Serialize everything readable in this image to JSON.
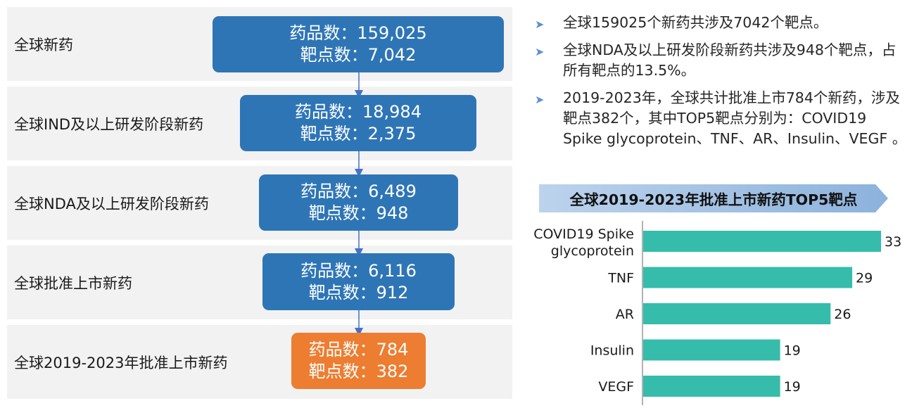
{
  "funnel": {
    "rows": [
      {
        "label": "全球新药",
        "drugs": "药品数：159,025",
        "targets": "靶点数：7,042"
      },
      {
        "label": "全球IND及以上研发阶段新药",
        "drugs": "药品数：18,984",
        "targets": "靶点数：2,375"
      },
      {
        "label": "全球NDA及以上研发阶段新药",
        "drugs": "药品数：6,489",
        "targets": "靶点数：948"
      },
      {
        "label": "全球批准上市新药",
        "drugs": "药品数：6,116",
        "targets": "靶点数：912"
      },
      {
        "label": "全球2019-2023年批准上市新药",
        "drugs": "药品数：784",
        "targets": "靶点数：382"
      }
    ],
    "box_color": "#2e75b6",
    "highlight_color": "#ed7d31",
    "arrow_color": "#4472c4"
  },
  "bullets": [
    "全球159025个新药共涉及7042个靶点。",
    "全球NDA及以上研发阶段新药共涉及948个靶点，占所有靶点的13.5%。",
    "2019-2023年，全球共计批准上市784个新药，涉及靶点382个，其中TOP5靶点分别为：COVID19 Spike glycoprotein、TNF、AR、Insulin、VEGF 。"
  ],
  "bullet_icon": "triangle-right-icon",
  "chart_data": {
    "type": "bar",
    "orientation": "horizontal",
    "title": "全球2019-2023年批准上市新药TOP5靶点",
    "categories": [
      "COVID19 Spike glycoprotein",
      "TNF",
      "AR",
      "Insulin",
      "VEGF"
    ],
    "category_lines": [
      [
        "COVID19 Spike",
        "glycoprotein"
      ],
      [
        "TNF"
      ],
      [
        "AR"
      ],
      [
        "Insulin"
      ],
      [
        "VEGF"
      ]
    ],
    "values": [
      33,
      29,
      26,
      19,
      19
    ],
    "bar_color": "#36bcab",
    "xlim": [
      0,
      33
    ],
    "grid": false,
    "legend": "none"
  }
}
